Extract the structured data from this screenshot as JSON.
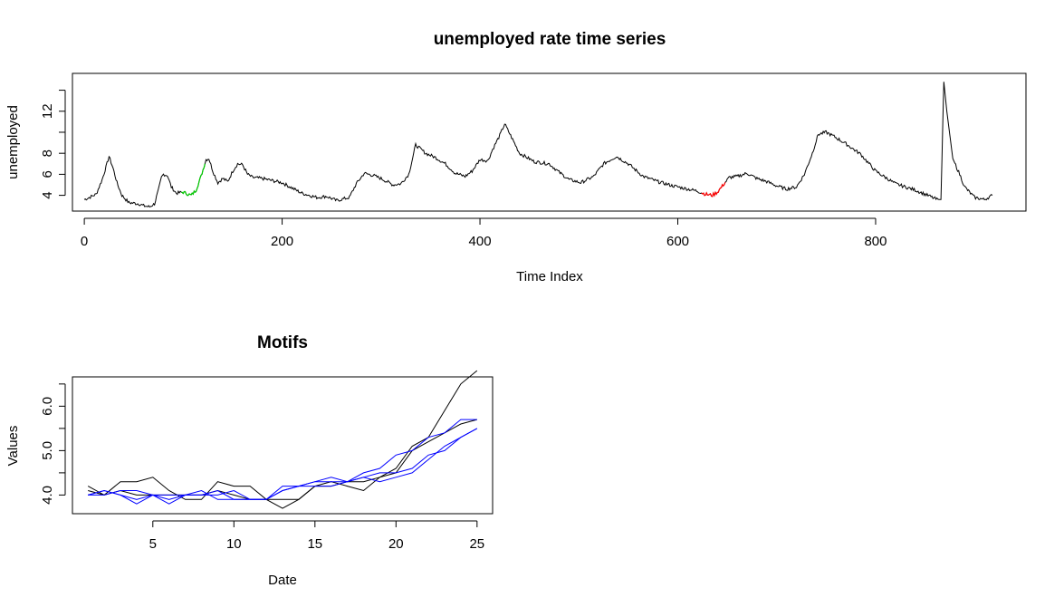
{
  "chart_data": [
    {
      "type": "line",
      "title": "unemployed rate time series",
      "xlabel": "Time Index",
      "ylabel": "unemployed",
      "xlim": [
        -12,
        952
      ],
      "ylim": [
        2.5,
        15.6
      ],
      "xticks": [
        0,
        200,
        400,
        600,
        800
      ],
      "yticks": [
        4,
        6,
        8,
        12
      ],
      "grid": false,
      "anchors": {
        "x": [
          0,
          5,
          12,
          18,
          22,
          25,
          29,
          33,
          38,
          45,
          55,
          60,
          66,
          71,
          75,
          78,
          80,
          84,
          88,
          93,
          100,
          108,
          113,
          118,
          123,
          126,
          130,
          135,
          140,
          145,
          150,
          155,
          160,
          165,
          170,
          180,
          200,
          220,
          235,
          245,
          255,
          268,
          275,
          283,
          292,
          300,
          312,
          320,
          328,
          335,
          345,
          355,
          365,
          375,
          385,
          392,
          400,
          408,
          413,
          420,
          425,
          432,
          440,
          455,
          470,
          480,
          490,
          502,
          515,
          525,
          538,
          550,
          565,
          580,
          595,
          610,
          620,
          628,
          635,
          640,
          646,
          652,
          660,
          670,
          680,
          690,
          700,
          710,
          720,
          728,
          736,
          742,
          750,
          758,
          770,
          785,
          800,
          820,
          840,
          855,
          862,
          866,
          869,
          872,
          878,
          885,
          890,
          900,
          910,
          918
        ],
        "y": [
          3.6,
          3.8,
          4.1,
          5.5,
          6.7,
          7.7,
          6.6,
          5.2,
          4.0,
          3.3,
          3.2,
          3.0,
          2.9,
          3.2,
          4.5,
          5.7,
          6.0,
          5.9,
          4.8,
          4.2,
          4.3,
          4.0,
          4.5,
          5.8,
          7.4,
          7.5,
          6.3,
          5.2,
          5.6,
          5.3,
          6.3,
          7.0,
          6.9,
          6.0,
          5.7,
          5.6,
          5.2,
          4.2,
          3.8,
          3.9,
          3.5,
          3.8,
          5.1,
          6.1,
          5.9,
          5.6,
          5.0,
          5.1,
          6.0,
          8.8,
          8.0,
          7.6,
          7.0,
          6.1,
          5.8,
          6.3,
          7.4,
          7.3,
          8.4,
          9.7,
          10.8,
          9.5,
          8.0,
          7.2,
          7.0,
          6.2,
          5.5,
          5.2,
          5.8,
          7.0,
          7.7,
          7.0,
          5.8,
          5.3,
          4.9,
          4.6,
          4.4,
          4.1,
          4.0,
          4.3,
          5.0,
          5.7,
          5.8,
          6.1,
          5.6,
          5.3,
          4.9,
          4.6,
          4.8,
          6.0,
          8.0,
          9.8,
          10.0,
          9.6,
          8.9,
          7.9,
          6.3,
          5.1,
          4.5,
          3.9,
          3.6,
          3.6,
          14.8,
          12.0,
          7.5,
          6.0,
          4.8,
          3.8,
          3.6,
          4.0
        ]
      },
      "highlights": [
        {
          "from": 98,
          "to": 122,
          "color": "#00cc00"
        },
        {
          "from": 624,
          "to": 648,
          "color": "#ff0000"
        }
      ],
      "series_color": "#000000"
    },
    {
      "type": "line",
      "title": "Motifs",
      "xlabel": "Date",
      "ylabel": "Values",
      "xlim": [
        0.04,
        25.96
      ],
      "ylim": [
        3.58,
        6.66
      ],
      "xticks": [
        5,
        10,
        15,
        20,
        25
      ],
      "yticks": [
        4.0,
        5.0,
        6.0
      ],
      "ytick_labels": [
        "4.0",
        "5.0",
        "6.0"
      ],
      "grid": false,
      "x": [
        1,
        2,
        3,
        4,
        5,
        6,
        7,
        8,
        9,
        10,
        11,
        12,
        13,
        14,
        15,
        16,
        17,
        18,
        19,
        20,
        21,
        22,
        23,
        24,
        25
      ],
      "series": [
        {
          "color": "#000000",
          "values": [
            4.2,
            4.0,
            4.1,
            4.0,
            4.0,
            4.0,
            4.0,
            4.0,
            4.1,
            4.0,
            3.9,
            3.9,
            3.9,
            3.9,
            4.2,
            4.2,
            4.3,
            4.3,
            4.4,
            4.5,
            5.0,
            5.2,
            5.4,
            5.6,
            5.7
          ]
        },
        {
          "color": "#000000",
          "values": [
            4.1,
            4.0,
            4.3,
            4.3,
            4.4,
            4.1,
            3.9,
            3.9,
            4.3,
            4.2,
            4.2,
            3.9,
            3.7,
            3.9,
            4.2,
            4.3,
            4.2,
            4.1,
            4.4,
            4.6,
            5.1,
            5.3,
            5.9,
            6.5,
            6.8
          ]
        },
        {
          "color": "#0000ff",
          "values": [
            4.0,
            4.1,
            4.0,
            3.9,
            4.0,
            4.0,
            4.0,
            4.0,
            4.0,
            4.1,
            3.9,
            3.9,
            4.1,
            4.2,
            4.3,
            4.3,
            4.3,
            4.4,
            4.3,
            4.4,
            4.5,
            4.8,
            5.1,
            5.3,
            5.5
          ]
        },
        {
          "color": "#0000ff",
          "values": [
            4.0,
            4.0,
            4.1,
            4.1,
            4.0,
            3.9,
            4.0,
            4.1,
            3.9,
            3.9,
            3.9,
            3.9,
            4.2,
            4.2,
            4.2,
            4.2,
            4.3,
            4.5,
            4.6,
            4.9,
            5.0,
            5.3,
            5.4,
            5.7,
            5.7
          ]
        },
        {
          "color": "#0000ff",
          "values": [
            4.0,
            4.1,
            4.0,
            3.8,
            4.0,
            3.8,
            4.0,
            4.0,
            4.1,
            3.9,
            3.9,
            3.9,
            4.1,
            4.2,
            4.3,
            4.4,
            4.3,
            4.4,
            4.5,
            4.5,
            4.6,
            4.9,
            5.0,
            5.3,
            5.5
          ]
        }
      ]
    }
  ]
}
